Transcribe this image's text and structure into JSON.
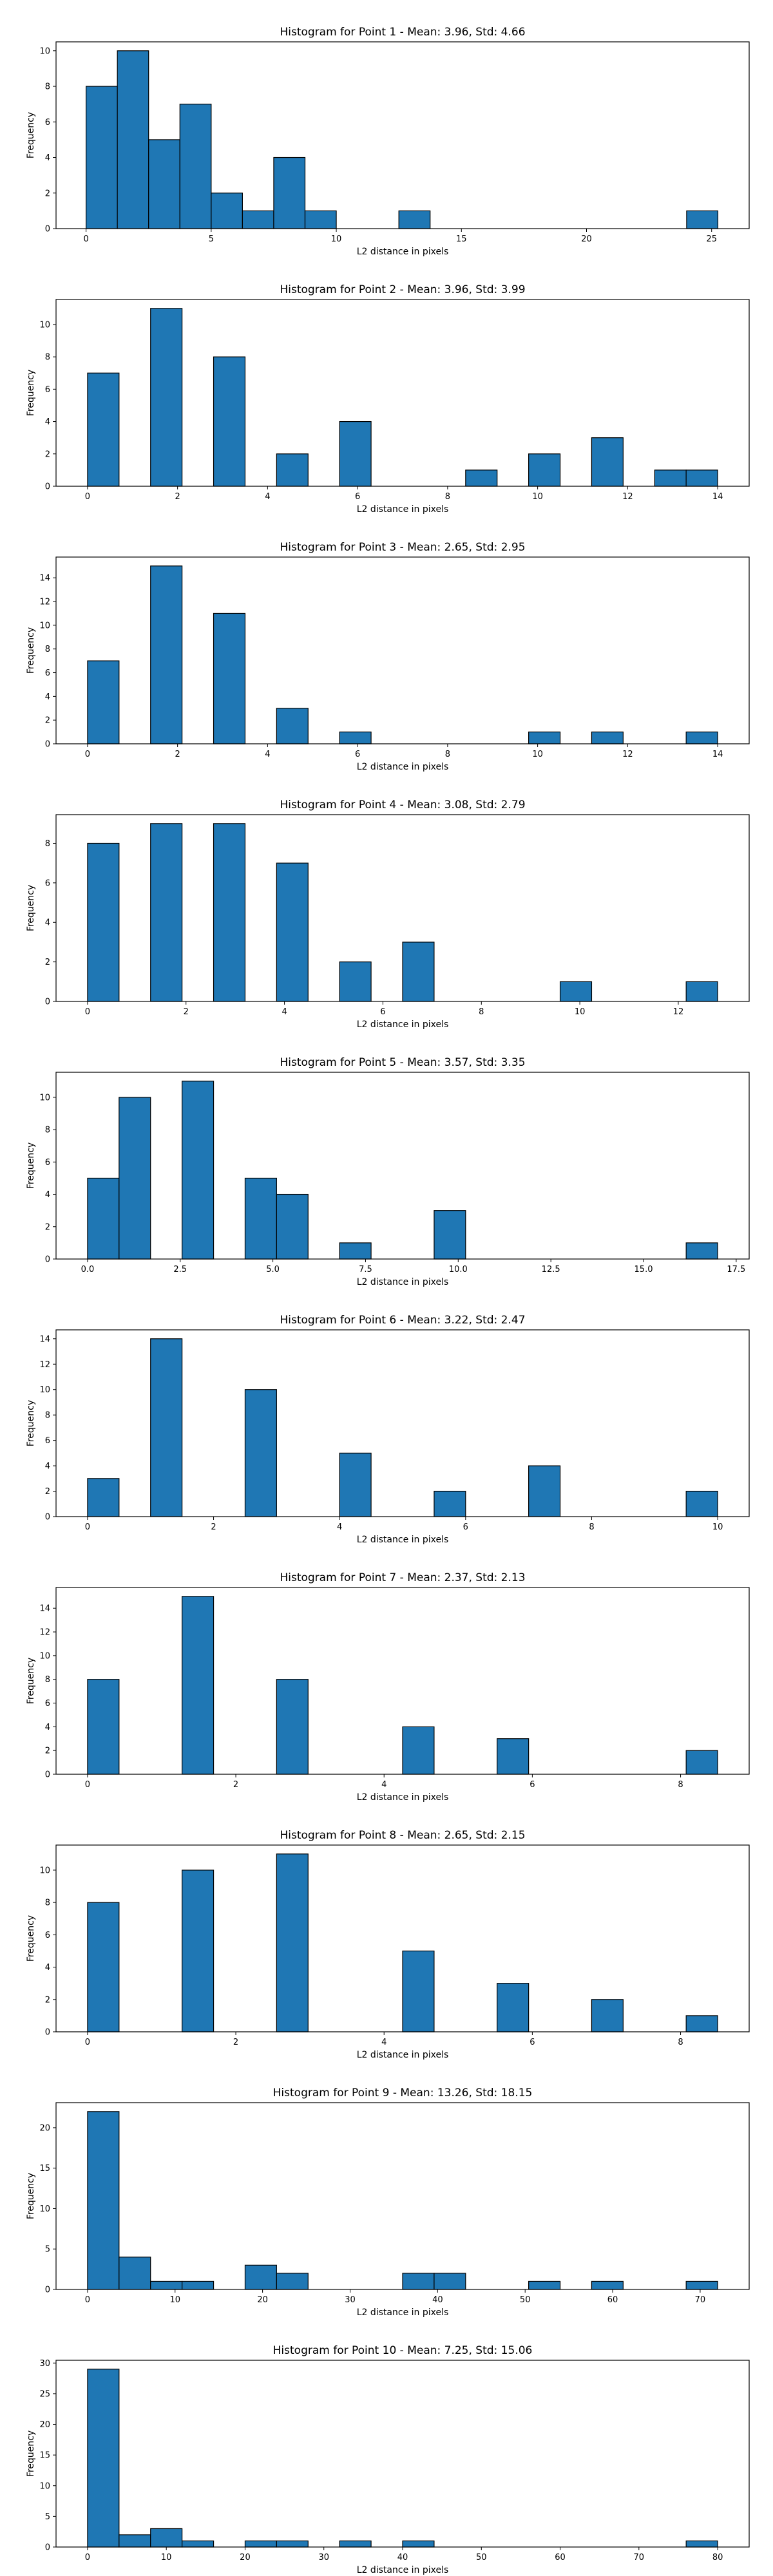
{
  "style": {
    "bar_color": "#1f77b4",
    "edge_color": "#000000"
  },
  "chart_data": [
    {
      "type": "bar",
      "title": "Histogram for Point 1 - Mean: 3.96, Std: 4.66",
      "xlabel": "L2 distance in pixels",
      "ylabel": "Frequency",
      "bins": [
        [
          0,
          1.25
        ],
        [
          1.25,
          2.5
        ],
        [
          2.5,
          3.75
        ],
        [
          3.75,
          5.0
        ],
        [
          5.0,
          6.25
        ],
        [
          6.25,
          7.5
        ],
        [
          7.5,
          8.75
        ],
        [
          8.75,
          10.0
        ],
        [
          12.5,
          13.75
        ],
        [
          24.0,
          25.25
        ]
      ],
      "counts": [
        8,
        10,
        5,
        7,
        2,
        1,
        4,
        1,
        1,
        1
      ],
      "xlim": [
        -1.2,
        26.5
      ],
      "ylim": [
        0,
        10.5
      ],
      "xticks": [
        0,
        5,
        10,
        15,
        20,
        25
      ],
      "xtick_labels": [
        "0",
        "5",
        "10",
        "15",
        "20",
        "25"
      ],
      "yticks": [
        0,
        2,
        4,
        6,
        8,
        10
      ]
    },
    {
      "type": "bar",
      "title": "Histogram for Point 2 - Mean: 3.96, Std: 3.99",
      "xlabel": "L2 distance in pixels",
      "ylabel": "Frequency",
      "bins": [
        [
          0,
          0.7
        ],
        [
          1.4,
          2.1
        ],
        [
          2.8,
          3.5
        ],
        [
          4.2,
          4.9
        ],
        [
          5.6,
          6.3
        ],
        [
          8.4,
          9.1
        ],
        [
          9.8,
          10.5
        ],
        [
          11.2,
          11.9
        ],
        [
          12.6,
          13.3
        ],
        [
          13.3,
          14.0
        ]
      ],
      "counts": [
        7,
        11,
        8,
        2,
        4,
        1,
        2,
        3,
        1,
        1
      ],
      "xlim": [
        -0.7,
        14.7
      ],
      "ylim": [
        0,
        11.55
      ],
      "xticks": [
        0,
        2,
        4,
        6,
        8,
        10,
        12,
        14
      ],
      "xtick_labels": [
        "0",
        "2",
        "4",
        "6",
        "8",
        "10",
        "12",
        "14"
      ],
      "yticks": [
        0,
        2,
        4,
        6,
        8,
        10
      ]
    },
    {
      "type": "bar",
      "title": "Histogram for Point 3 - Mean: 2.65, Std: 2.95",
      "xlabel": "L2 distance in pixels",
      "ylabel": "Frequency",
      "bins": [
        [
          0,
          0.7
        ],
        [
          1.4,
          2.1
        ],
        [
          2.8,
          3.5
        ],
        [
          4.2,
          4.9
        ],
        [
          5.6,
          6.3
        ],
        [
          9.8,
          10.5
        ],
        [
          11.2,
          11.9
        ],
        [
          13.3,
          14.0
        ]
      ],
      "counts": [
        7,
        15,
        11,
        3,
        1,
        1,
        1,
        1
      ],
      "xlim": [
        -0.7,
        14.7
      ],
      "ylim": [
        0,
        15.75
      ],
      "xticks": [
        0,
        2,
        4,
        6,
        8,
        10,
        12,
        14
      ],
      "xtick_labels": [
        "0",
        "2",
        "4",
        "6",
        "8",
        "10",
        "12",
        "14"
      ],
      "yticks": [
        0,
        2,
        4,
        6,
        8,
        10,
        12,
        14
      ]
    },
    {
      "type": "bar",
      "title": "Histogram for Point 4 - Mean: 3.08, Std: 2.79",
      "xlabel": "L2 distance in pixels",
      "ylabel": "Frequency",
      "bins": [
        [
          0,
          0.64
        ],
        [
          1.28,
          1.92
        ],
        [
          2.56,
          3.2
        ],
        [
          3.84,
          4.48
        ],
        [
          5.12,
          5.76
        ],
        [
          6.4,
          7.04
        ],
        [
          9.6,
          10.24
        ],
        [
          12.16,
          12.8
        ]
      ],
      "counts": [
        8,
        9,
        9,
        7,
        2,
        3,
        1,
        1
      ],
      "xlim": [
        -0.64,
        13.44
      ],
      "ylim": [
        0,
        9.45
      ],
      "xticks": [
        0,
        2,
        4,
        6,
        8,
        10,
        12
      ],
      "xtick_labels": [
        "0",
        "2",
        "4",
        "6",
        "8",
        "10",
        "12"
      ],
      "yticks": [
        0,
        2,
        4,
        6,
        8
      ]
    },
    {
      "type": "bar",
      "title": "Histogram for Point 5 - Mean: 3.57, Std: 3.35",
      "xlabel": "L2 distance in pixels",
      "ylabel": "Frequency",
      "bins": [
        [
          0,
          0.85
        ],
        [
          0.85,
          1.7
        ],
        [
          2.55,
          3.4
        ],
        [
          4.25,
          5.1
        ],
        [
          5.1,
          5.95
        ],
        [
          6.8,
          7.65
        ],
        [
          9.35,
          10.2
        ],
        [
          16.15,
          17.0
        ]
      ],
      "counts": [
        5,
        10,
        11,
        5,
        4,
        1,
        3,
        1
      ],
      "xlim": [
        -0.85,
        17.85
      ],
      "ylim": [
        0,
        11.55
      ],
      "xticks": [
        0,
        2.5,
        5,
        7.5,
        10,
        12.5,
        15,
        17.5
      ],
      "xtick_labels": [
        "0.0",
        "2.5",
        "5.0",
        "7.5",
        "10.0",
        "12.5",
        "15.0",
        "17.5"
      ],
      "yticks": [
        0,
        2,
        4,
        6,
        8,
        10
      ]
    },
    {
      "type": "bar",
      "title": "Histogram for Point 6 - Mean: 3.22, Std: 2.47",
      "xlabel": "L2 distance in pixels",
      "ylabel": "Frequency",
      "bins": [
        [
          0,
          0.5
        ],
        [
          1.0,
          1.5
        ],
        [
          2.5,
          3.0
        ],
        [
          4.0,
          4.5
        ],
        [
          5.5,
          6.0
        ],
        [
          7.0,
          7.5
        ],
        [
          9.5,
          10.0
        ]
      ],
      "counts": [
        3,
        14,
        10,
        5,
        2,
        4,
        2
      ],
      "xlim": [
        -0.5,
        10.5
      ],
      "ylim": [
        0,
        14.7
      ],
      "xticks": [
        0,
        2,
        4,
        6,
        8,
        10
      ],
      "xtick_labels": [
        "0",
        "2",
        "4",
        "6",
        "8",
        "10"
      ],
      "yticks": [
        0,
        2,
        4,
        6,
        8,
        10,
        12,
        14
      ]
    },
    {
      "type": "bar",
      "title": "Histogram for Point 7 - Mean: 2.37, Std: 2.13",
      "xlabel": "L2 distance in pixels",
      "ylabel": "Frequency",
      "bins": [
        [
          0,
          0.425
        ],
        [
          1.275,
          1.7
        ],
        [
          2.55,
          2.975
        ],
        [
          4.25,
          4.675
        ],
        [
          5.525,
          5.95
        ],
        [
          8.075,
          8.5
        ]
      ],
      "counts": [
        8,
        15,
        8,
        4,
        3,
        2
      ],
      "xlim": [
        -0.425,
        8.925
      ],
      "ylim": [
        0,
        15.75
      ],
      "xticks": [
        0,
        2,
        4,
        6,
        8
      ],
      "xtick_labels": [
        "0",
        "2",
        "4",
        "6",
        "8"
      ],
      "yticks": [
        0,
        2,
        4,
        6,
        8,
        10,
        12,
        14
      ]
    },
    {
      "type": "bar",
      "title": "Histogram for Point 8 - Mean: 2.65, Std: 2.15",
      "xlabel": "L2 distance in pixels",
      "ylabel": "Frequency",
      "bins": [
        [
          0,
          0.425
        ],
        [
          1.275,
          1.7
        ],
        [
          2.55,
          2.975
        ],
        [
          4.25,
          4.675
        ],
        [
          5.525,
          5.95
        ],
        [
          6.8,
          7.225
        ],
        [
          8.075,
          8.5
        ]
      ],
      "counts": [
        8,
        10,
        11,
        5,
        3,
        2,
        1
      ],
      "xlim": [
        -0.425,
        8.925
      ],
      "ylim": [
        0,
        11.55
      ],
      "xticks": [
        0,
        2,
        4,
        6,
        8
      ],
      "xtick_labels": [
        "0",
        "2",
        "4",
        "6",
        "8"
      ],
      "yticks": [
        0,
        2,
        4,
        6,
        8,
        10
      ]
    },
    {
      "type": "bar",
      "title": "Histogram for Point 9 - Mean: 13.26, Std: 18.15",
      "xlabel": "L2 distance in pixels",
      "ylabel": "Frequency",
      "bins": [
        [
          0,
          3.6
        ],
        [
          3.6,
          7.2
        ],
        [
          7.2,
          10.8
        ],
        [
          10.8,
          14.4
        ],
        [
          18,
          21.6
        ],
        [
          21.6,
          25.2
        ],
        [
          36,
          39.6
        ],
        [
          39.6,
          43.2
        ],
        [
          50.4,
          54
        ],
        [
          57.6,
          61.2
        ],
        [
          68.4,
          72
        ]
      ],
      "counts": [
        22,
        4,
        1,
        1,
        3,
        2,
        2,
        2,
        1,
        1,
        1
      ],
      "xlim": [
        -3.6,
        75.6
      ],
      "ylim": [
        0,
        23.1
      ],
      "xticks": [
        0,
        10,
        20,
        30,
        40,
        50,
        60,
        70
      ],
      "xtick_labels": [
        "0",
        "10",
        "20",
        "30",
        "40",
        "50",
        "60",
        "70"
      ],
      "yticks": [
        0,
        5,
        10,
        15,
        20
      ]
    },
    {
      "type": "bar",
      "title": "Histogram for Point 10 - Mean: 7.25, Std: 15.06",
      "xlabel": "L2 distance in pixels",
      "ylabel": "Frequency",
      "bins": [
        [
          0,
          4
        ],
        [
          4,
          8
        ],
        [
          8,
          12
        ],
        [
          12,
          16
        ],
        [
          20,
          24
        ],
        [
          24,
          28
        ],
        [
          32,
          36
        ],
        [
          40,
          44
        ],
        [
          76,
          80
        ]
      ],
      "counts": [
        29,
        2,
        3,
        1,
        1,
        1,
        1,
        1,
        1
      ],
      "xlim": [
        -4,
        84
      ],
      "ylim": [
        0,
        30.45
      ],
      "xticks": [
        0,
        10,
        20,
        30,
        40,
        50,
        60,
        70,
        80
      ],
      "xtick_labels": [
        "0",
        "10",
        "20",
        "30",
        "40",
        "50",
        "60",
        "70",
        "80"
      ],
      "yticks": [
        0,
        5,
        10,
        15,
        20,
        25,
        30
      ]
    }
  ]
}
